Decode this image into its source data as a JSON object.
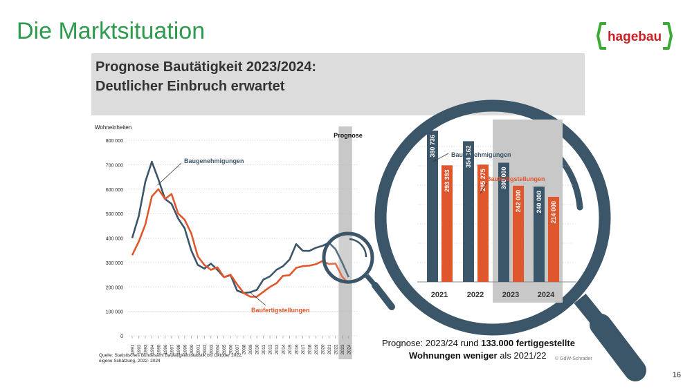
{
  "slide": {
    "title": "Die Marktsituation",
    "page_number": "16",
    "banner_line1": "Prognose Bautätigkeit 2023/2024:",
    "banner_line2": "Deutlicher Einbruch erwartet",
    "logo_text": "hagebau",
    "prognose_note_1": "Prognose: 2023/24 rund ",
    "prognose_note_bold1": "133.000 fertiggestellte",
    "prognose_note_bold2": "Wohnungen weniger",
    "prognose_note_2": " als 2021/22"
  },
  "colors": {
    "permits": "#3b5569",
    "completions": "#e0562d",
    "title_green": "#2e9a4e",
    "logo_green": "#3aaa35"
  },
  "chart_data": [
    {
      "type": "line",
      "ylabel": "Wohneinheiten",
      "ylim": [
        0,
        800000
      ],
      "yticks": [
        "0",
        "100 000",
        "200 000",
        "300 000",
        "400 000",
        "500 000",
        "600 000",
        "700 000",
        "800 000"
      ],
      "x": [
        "1991",
        "1992",
        "1993",
        "1994",
        "1995",
        "1996",
        "1997",
        "1998",
        "1999",
        "2000",
        "2001",
        "2002",
        "2003",
        "2004",
        "2005",
        "2006",
        "2007",
        "2008",
        "2009",
        "2010",
        "2011",
        "2012",
        "2013",
        "2014",
        "2015",
        "2016",
        "2017",
        "2018",
        "2019",
        "2020",
        "2021",
        "2022",
        "2023",
        "2024"
      ],
      "forecast_label": "Prognose",
      "forecast_years": [
        "2023",
        "2024"
      ],
      "series": [
        {
          "name": "Baugenehmigungen",
          "values": [
            400000,
            490000,
            630000,
            712000,
            640000,
            560000,
            540000,
            480000,
            440000,
            350000,
            290000,
            275000,
            295000,
            270000,
            240000,
            248000,
            185000,
            175000,
            178000,
            188000,
            230000,
            243000,
            270000,
            285000,
            312000,
            375000,
            348000,
            347000,
            360000,
            368000,
            380736,
            354162,
            300000,
            240000
          ]
        },
        {
          "name": "Baufertigstellungen",
          "values": [
            330000,
            385000,
            455000,
            570000,
            600000,
            560000,
            580000,
            500000,
            475000,
            420000,
            325000,
            290000,
            270000,
            280000,
            240000,
            250000,
            210000,
            175000,
            160000,
            160000,
            180000,
            200000,
            215000,
            245000,
            248000,
            278000,
            285000,
            287000,
            293000,
            306000,
            293393,
            295275,
            242000,
            214000
          ]
        }
      ],
      "source_line1": "Quelle: Statistisches Bundesamt Bautätigkeitsstatistik bis Oktober 2022,",
      "source_line2": "eigene Schätzung, 2022- 2024"
    },
    {
      "type": "bar",
      "categories": [
        "2021",
        "2022",
        "2023",
        "2024"
      ],
      "series": [
        {
          "name": "Baugenehmigungen",
          "values": [
            380736,
            354162,
            300000,
            240000
          ],
          "labels": [
            "380 736",
            "354 162",
            "300 000",
            "240 000"
          ]
        },
        {
          "name": "Baufertigstellungen",
          "values": [
            293393,
            295275,
            242000,
            214000
          ],
          "labels": [
            "293 393",
            "295 275",
            "242 000",
            "214 000"
          ]
        }
      ],
      "forecast_categories": [
        "2023",
        "2024"
      ],
      "credit": "© GdW-Schrader"
    }
  ]
}
